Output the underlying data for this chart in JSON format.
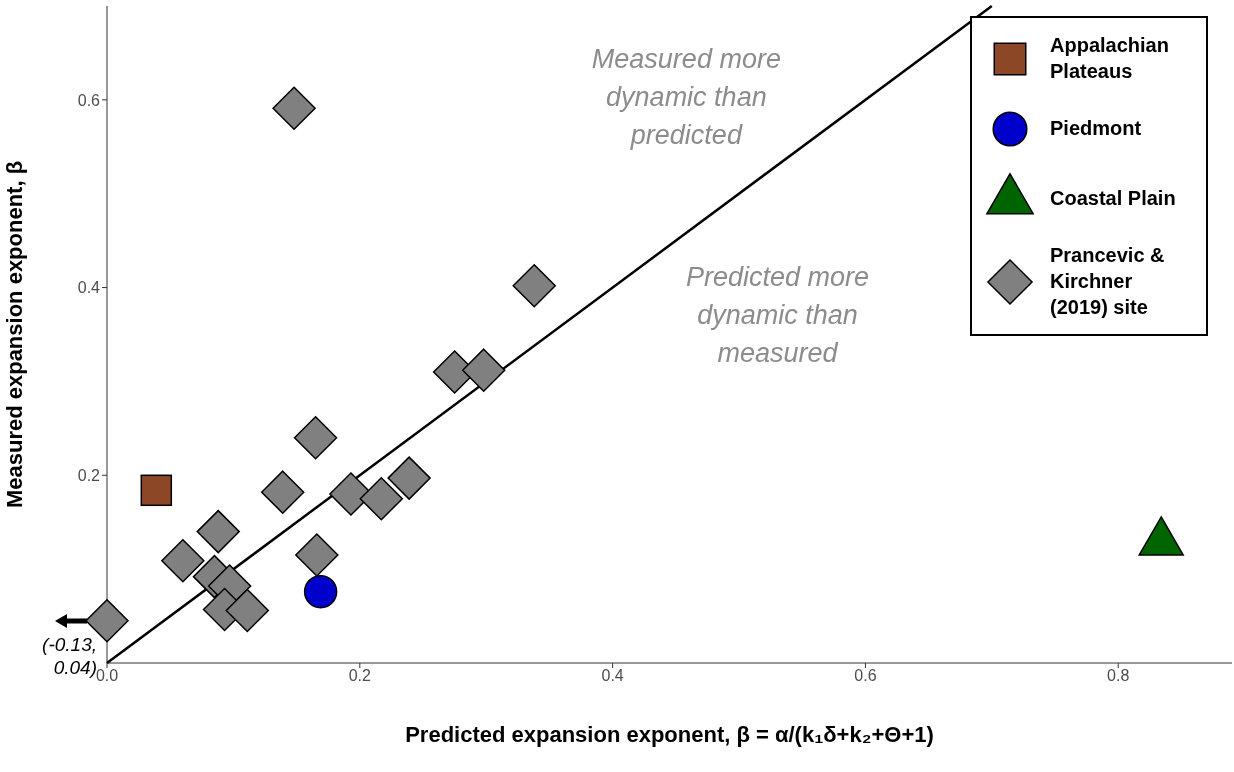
{
  "chart_data": {
    "type": "scatter",
    "xlabel": "Predicted expansion exponent, β = α/(k₁δ+k₂+Θ+1)",
    "ylabel": "Measured expansion exponent, β",
    "xlim": [
      0,
      0.89
    ],
    "xticks": [
      {
        "value": 0,
        "label": "0.0"
      },
      0.2,
      0.4,
      0.6,
      0.8
    ],
    "ylim": [
      0,
      0.7
    ],
    "yticks": [
      0.2,
      0.4,
      0.6
    ],
    "legend": "top right",
    "series": [
      {
        "type": "line",
        "x": [
          0,
          0.7
        ],
        "values": [
          0,
          0.7
        ],
        "color": "#000000",
        "marker": "none",
        "line_style": "solid"
      },
      {
        "name": "Appalachian Plateaus",
        "color": "#8b4726",
        "marker": "square",
        "x": [
          0.039
        ],
        "values": [
          0.184
        ]
      },
      {
        "name": "Piedmont",
        "color": "#0000cd",
        "marker": "circle",
        "x": [
          0.169
        ],
        "values": [
          0.076
        ]
      },
      {
        "name": "Coastal Plain",
        "color": "#006400",
        "marker": "triangle",
        "x": [
          0.834
        ],
        "values": [
          0.13
        ]
      },
      {
        "name": "Prancevic & Kirchner (2019) site",
        "color": "#808080",
        "marker": "diamond",
        "x": [
          0.148,
          0.338,
          0.275,
          0.298,
          0.165,
          0.139,
          0.193,
          0.217,
          0.239,
          0.088,
          0.06,
          0.166,
          0.085,
          0.097,
          0.093,
          0.111,
          0
        ],
        "values": [
          0.591,
          0.402,
          0.31,
          0.312,
          0.24,
          0.182,
          0.18,
          0.175,
          0.197,
          0.14,
          0.109,
          0.115,
          0.092,
          0.082,
          0.057,
          0.056,
          0.045
        ]
      }
    ],
    "annotations": [
      "Measured more dynamic than predicted",
      "Predicted more dynamic than measured",
      {
        "text": "(-0.13, 0.04)",
        "x": 0,
        "y": 0.045
      }
    ]
  }
}
